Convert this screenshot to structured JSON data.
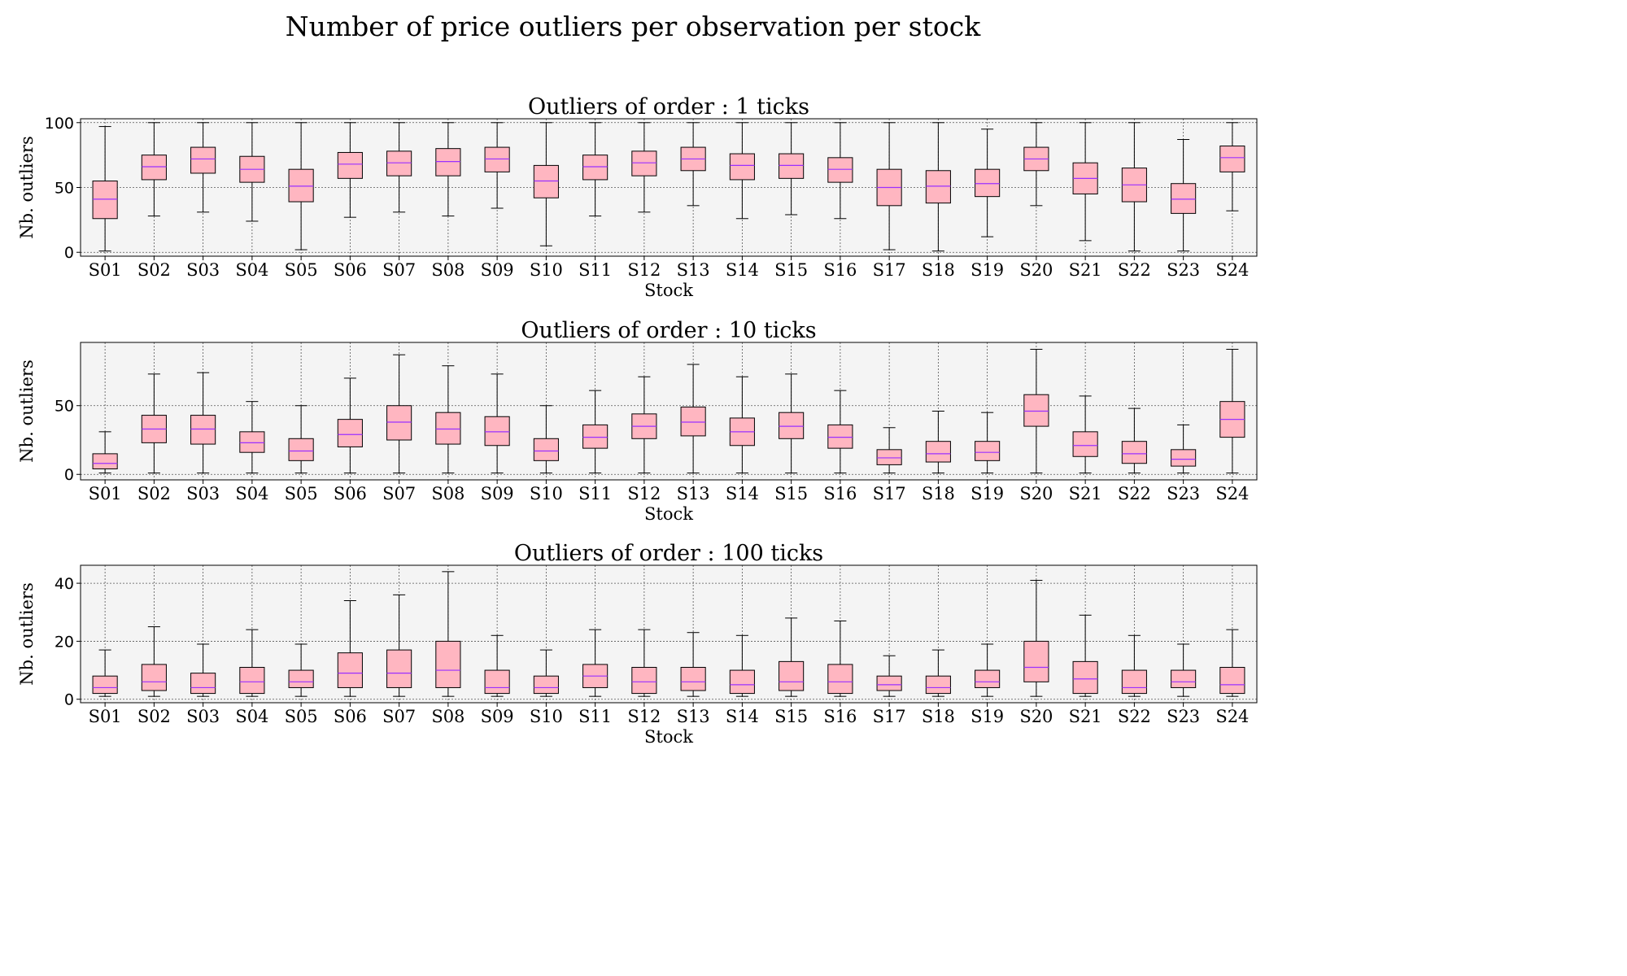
{
  "chart_data": {
    "title": "Number of price outliers per observation per stock",
    "colors": {
      "box_fill": "#ffb6c1",
      "median": "#9b30ff",
      "axes_bg": "#f4f4f4",
      "line": "#000000"
    },
    "panels": [
      {
        "type": "box",
        "title": "Outliers of order : 1 ticks",
        "xlabel": "Stock",
        "ylabel": "Nb. outliers",
        "ylim": [
          -3,
          103
        ],
        "yticks": [
          0,
          50,
          100
        ],
        "grid": true,
        "categories": [
          "S01",
          "S02",
          "S03",
          "S04",
          "S05",
          "S06",
          "S07",
          "S08",
          "S09",
          "S10",
          "S11",
          "S12",
          "S13",
          "S14",
          "S15",
          "S16",
          "S17",
          "S18",
          "S19",
          "S20",
          "S21",
          "S22",
          "S23",
          "S24"
        ],
        "stats": [
          {
            "min": 1,
            "q1": 26,
            "median": 41,
            "q3": 55,
            "max": 97
          },
          {
            "min": 28,
            "q1": 56,
            "median": 66,
            "q3": 75,
            "max": 100
          },
          {
            "min": 31,
            "q1": 61,
            "median": 72,
            "q3": 81,
            "max": 100
          },
          {
            "min": 24,
            "q1": 54,
            "median": 64,
            "q3": 74,
            "max": 100
          },
          {
            "min": 2,
            "q1": 39,
            "median": 51,
            "q3": 64,
            "max": 100
          },
          {
            "min": 27,
            "q1": 57,
            "median": 68,
            "q3": 77,
            "max": 100
          },
          {
            "min": 31,
            "q1": 59,
            "median": 69,
            "q3": 78,
            "max": 100
          },
          {
            "min": 28,
            "q1": 59,
            "median": 70,
            "q3": 80,
            "max": 100
          },
          {
            "min": 34,
            "q1": 62,
            "median": 72,
            "q3": 81,
            "max": 100
          },
          {
            "min": 5,
            "q1": 42,
            "median": 55,
            "q3": 67,
            "max": 100
          },
          {
            "min": 28,
            "q1": 56,
            "median": 66,
            "q3": 75,
            "max": 100
          },
          {
            "min": 31,
            "q1": 59,
            "median": 69,
            "q3": 78,
            "max": 100
          },
          {
            "min": 36,
            "q1": 63,
            "median": 72,
            "q3": 81,
            "max": 100
          },
          {
            "min": 26,
            "q1": 56,
            "median": 67,
            "q3": 76,
            "max": 100
          },
          {
            "min": 29,
            "q1": 57,
            "median": 67,
            "q3": 76,
            "max": 100
          },
          {
            "min": 26,
            "q1": 54,
            "median": 64,
            "q3": 73,
            "max": 100
          },
          {
            "min": 2,
            "q1": 36,
            "median": 50,
            "q3": 64,
            "max": 100
          },
          {
            "min": 1,
            "q1": 38,
            "median": 51,
            "q3": 63,
            "max": 100
          },
          {
            "min": 12,
            "q1": 43,
            "median": 53,
            "q3": 64,
            "max": 95
          },
          {
            "min": 36,
            "q1": 63,
            "median": 72,
            "q3": 81,
            "max": 100
          },
          {
            "min": 9,
            "q1": 45,
            "median": 57,
            "q3": 69,
            "max": 100
          },
          {
            "min": 1,
            "q1": 39,
            "median": 52,
            "q3": 65,
            "max": 100
          },
          {
            "min": 1,
            "q1": 30,
            "median": 41,
            "q3": 53,
            "max": 87
          },
          {
            "min": 32,
            "q1": 62,
            "median": 73,
            "q3": 82,
            "max": 100
          }
        ]
      },
      {
        "type": "box",
        "title": "Outliers of order : 10 ticks",
        "xlabel": "Stock",
        "ylabel": "Nb. outliers",
        "ylim": [
          -4,
          96
        ],
        "yticks": [
          0,
          50
        ],
        "grid": true,
        "categories": [
          "S01",
          "S02",
          "S03",
          "S04",
          "S05",
          "S06",
          "S07",
          "S08",
          "S09",
          "S10",
          "S11",
          "S12",
          "S13",
          "S14",
          "S15",
          "S16",
          "S17",
          "S18",
          "S19",
          "S20",
          "S21",
          "S22",
          "S23",
          "S24"
        ],
        "stats": [
          {
            "min": 1,
            "q1": 4,
            "median": 8,
            "q3": 15,
            "max": 31
          },
          {
            "min": 1,
            "q1": 23,
            "median": 33,
            "q3": 43,
            "max": 73
          },
          {
            "min": 1,
            "q1": 22,
            "median": 33,
            "q3": 43,
            "max": 74
          },
          {
            "min": 1,
            "q1": 16,
            "median": 23,
            "q3": 31,
            "max": 53
          },
          {
            "min": 1,
            "q1": 10,
            "median": 17,
            "q3": 26,
            "max": 50
          },
          {
            "min": 1,
            "q1": 20,
            "median": 29,
            "q3": 40,
            "max": 70
          },
          {
            "min": 1,
            "q1": 25,
            "median": 38,
            "q3": 50,
            "max": 87
          },
          {
            "min": 1,
            "q1": 22,
            "median": 33,
            "q3": 45,
            "max": 79
          },
          {
            "min": 1,
            "q1": 21,
            "median": 31,
            "q3": 42,
            "max": 73
          },
          {
            "min": 1,
            "q1": 10,
            "median": 17,
            "q3": 26,
            "max": 50
          },
          {
            "min": 1,
            "q1": 19,
            "median": 27,
            "q3": 36,
            "max": 61
          },
          {
            "min": 1,
            "q1": 26,
            "median": 35,
            "q3": 44,
            "max": 71
          },
          {
            "min": 1,
            "q1": 28,
            "median": 38,
            "q3": 49,
            "max": 80
          },
          {
            "min": 1,
            "q1": 21,
            "median": 31,
            "q3": 41,
            "max": 71
          },
          {
            "min": 1,
            "q1": 26,
            "median": 35,
            "q3": 45,
            "max": 73
          },
          {
            "min": 1,
            "q1": 19,
            "median": 27,
            "q3": 36,
            "max": 61
          },
          {
            "min": 1,
            "q1": 7,
            "median": 12,
            "q3": 18,
            "max": 34
          },
          {
            "min": 1,
            "q1": 9,
            "median": 15,
            "q3": 24,
            "max": 46
          },
          {
            "min": 1,
            "q1": 10,
            "median": 16,
            "q3": 24,
            "max": 45
          },
          {
            "min": 1,
            "q1": 35,
            "median": 46,
            "q3": 58,
            "max": 91
          },
          {
            "min": 1,
            "q1": 13,
            "median": 21,
            "q3": 31,
            "max": 57
          },
          {
            "min": 1,
            "q1": 8,
            "median": 15,
            "q3": 24,
            "max": 48
          },
          {
            "min": 1,
            "q1": 6,
            "median": 11,
            "q3": 18,
            "max": 36
          },
          {
            "min": 1,
            "q1": 27,
            "median": 40,
            "q3": 53,
            "max": 91
          }
        ]
      },
      {
        "type": "box",
        "title": "Outliers of order : 100 ticks",
        "xlabel": "Stock",
        "ylabel": "Nb. outliers",
        "ylim": [
          -1.2,
          46.2
        ],
        "yticks": [
          0,
          20,
          40
        ],
        "grid": true,
        "categories": [
          "S01",
          "S02",
          "S03",
          "S04",
          "S05",
          "S06",
          "S07",
          "S08",
          "S09",
          "S10",
          "S11",
          "S12",
          "S13",
          "S14",
          "S15",
          "S16",
          "S17",
          "S18",
          "S19",
          "S20",
          "S21",
          "S22",
          "S23",
          "S24"
        ],
        "stats": [
          {
            "min": 1,
            "q1": 2,
            "median": 4,
            "q3": 8,
            "max": 17
          },
          {
            "min": 1,
            "q1": 3,
            "median": 6,
            "q3": 12,
            "max": 25
          },
          {
            "min": 1,
            "q1": 2,
            "median": 4,
            "q3": 9,
            "max": 19
          },
          {
            "min": 1,
            "q1": 2,
            "median": 6,
            "q3": 11,
            "max": 24
          },
          {
            "min": 1,
            "q1": 4,
            "median": 6,
            "q3": 10,
            "max": 19
          },
          {
            "min": 1,
            "q1": 4,
            "median": 9,
            "q3": 16,
            "max": 34
          },
          {
            "min": 1,
            "q1": 4,
            "median": 9,
            "q3": 17,
            "max": 36
          },
          {
            "min": 1,
            "q1": 4,
            "median": 10,
            "q3": 20,
            "max": 44
          },
          {
            "min": 1,
            "q1": 2,
            "median": 4,
            "q3": 10,
            "max": 22
          },
          {
            "min": 1,
            "q1": 2,
            "median": 4,
            "q3": 8,
            "max": 17
          },
          {
            "min": 1,
            "q1": 4,
            "median": 8,
            "q3": 12,
            "max": 24
          },
          {
            "min": 1,
            "q1": 2,
            "median": 6,
            "q3": 11,
            "max": 24
          },
          {
            "min": 1,
            "q1": 3,
            "median": 6,
            "q3": 11,
            "max": 23
          },
          {
            "min": 1,
            "q1": 2,
            "median": 5,
            "q3": 10,
            "max": 22
          },
          {
            "min": 1,
            "q1": 3,
            "median": 6,
            "q3": 13,
            "max": 28
          },
          {
            "min": 1,
            "q1": 2,
            "median": 6,
            "q3": 12,
            "max": 27
          },
          {
            "min": 1,
            "q1": 3,
            "median": 5,
            "q3": 8,
            "max": 15
          },
          {
            "min": 1,
            "q1": 2,
            "median": 4,
            "q3": 8,
            "max": 17
          },
          {
            "min": 1,
            "q1": 4,
            "median": 6,
            "q3": 10,
            "max": 19
          },
          {
            "min": 1,
            "q1": 6,
            "median": 11,
            "q3": 20,
            "max": 41
          },
          {
            "min": 1,
            "q1": 2,
            "median": 7,
            "q3": 13,
            "max": 29
          },
          {
            "min": 1,
            "q1": 2,
            "median": 4,
            "q3": 10,
            "max": 22
          },
          {
            "min": 1,
            "q1": 4,
            "median": 6,
            "q3": 10,
            "max": 19
          },
          {
            "min": 1,
            "q1": 2,
            "median": 5,
            "q3": 11,
            "max": 24
          }
        ]
      }
    ]
  }
}
